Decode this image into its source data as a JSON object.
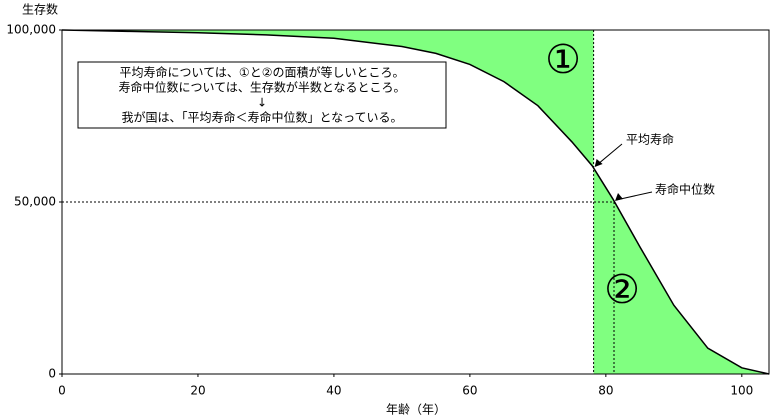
{
  "chart_data": {
    "type": "line",
    "y_axis_label": "生存数",
    "x_axis_label": "年齢（年）",
    "x": [
      0,
      10,
      20,
      30,
      40,
      50,
      55,
      60,
      65,
      70,
      75,
      78,
      81,
      85,
      90,
      95,
      100,
      104
    ],
    "values": [
      100000,
      99600,
      99200,
      98600,
      97600,
      95200,
      93200,
      90000,
      85000,
      78000,
      67500,
      60500,
      51000,
      37000,
      20000,
      7500,
      1800,
      0
    ],
    "color": "#000000",
    "area_color": "#80ff80",
    "xlim": [
      0,
      104
    ],
    "ylim": [
      0,
      100000
    ],
    "xticks": [
      0,
      20,
      40,
      60,
      80,
      100
    ],
    "yticks": [
      0,
      {
        "value": 50000,
        "label": "50,000"
      },
      {
        "value": 100000,
        "label": "100,000"
      }
    ],
    "mean_age": 78.2,
    "median_age": 81.2,
    "median_survivors": 50000,
    "mean_label": "平均寿命",
    "median_label": "寿命中位数",
    "area1_label": "①",
    "area2_label": "②",
    "note_lines": [
      "平均寿命については、①と②の面積が等しいところ。",
      "寿命中位数については、生存数が半数となるところ。",
      "↓",
      "我が国は、「平均寿命＜寿命中位数」となっている。"
    ]
  }
}
